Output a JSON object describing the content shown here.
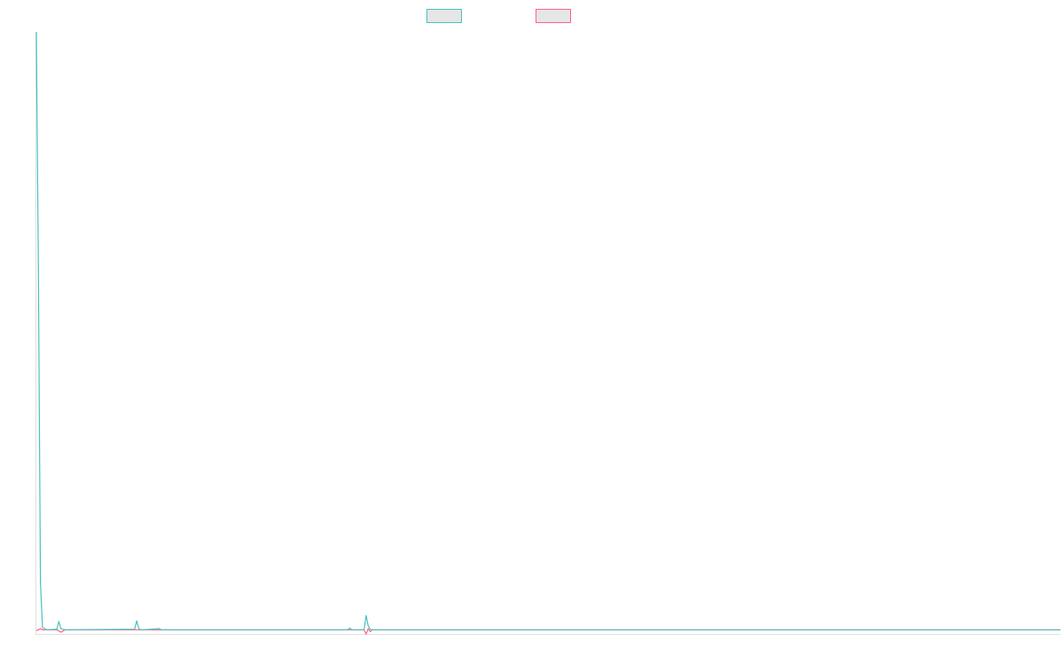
{
  "chart_data": {
    "type": "line",
    "title": "",
    "xlabel": "",
    "ylabel": "",
    "grid": false,
    "legend_position": "top-center",
    "xlim": [
      0,
      500
    ],
    "ylim": [
      0,
      100
    ],
    "series": [
      {
        "color": "#4bc0c0",
        "x": [
          0,
          1,
          2,
          3,
          4,
          5,
          10,
          11,
          12,
          13,
          14,
          48,
          49,
          50,
          51,
          52,
          60,
          61,
          62,
          152,
          153,
          154,
          160,
          161,
          162,
          163,
          164,
          500
        ],
        "y": [
          100,
          60,
          8,
          0.5,
          0.3,
          0.1,
          0.2,
          1.5,
          0.3,
          0.2,
          0.1,
          0.2,
          1.6,
          0.3,
          0.1,
          0.1,
          0.3,
          0.1,
          0.1,
          0.1,
          0.4,
          0.1,
          0.1,
          2.5,
          0.8,
          0.2,
          0.1,
          0.1
        ]
      },
      {
        "color": "#ff6384",
        "x": [
          0,
          1,
          2,
          3,
          4,
          10,
          12,
          14,
          160,
          161,
          162,
          163,
          164,
          500
        ],
        "y": [
          0,
          0.1,
          0.3,
          0.1,
          0.1,
          0.1,
          -0.3,
          0.1,
          0.1,
          -0.6,
          0.3,
          -0.2,
          0.1,
          0.1
        ]
      }
    ]
  }
}
